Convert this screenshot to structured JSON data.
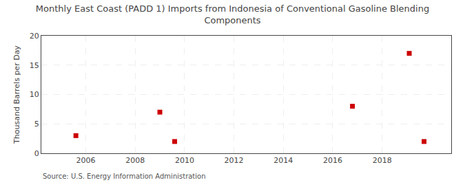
{
  "chart_data": {
    "type": "scatter",
    "title": "Monthly East Coast (PADD 1) Imports from Indonesia of Conventional Gasoline Blending\nComponents",
    "y_label": "Thousand Barrels per Day",
    "annotations": [
      "Source: U.S. Energy Information Administration"
    ],
    "x": [
      2005.6,
      2009.0,
      2009.6,
      2016.8,
      2019.1,
      2019.7
    ],
    "values": [
      3.0,
      7.0,
      2.0,
      8.0,
      17.0,
      2.0
    ],
    "color": "#cc0000",
    "marker": "square",
    "xlim": [
      2004.2,
      2020.8
    ],
    "ylim": [
      0,
      20
    ],
    "xticks": [
      2006,
      2008,
      2010,
      2012,
      2014,
      2016,
      2018
    ],
    "yticks": [
      0,
      5,
      10,
      15,
      20
    ],
    "grid": true
  }
}
